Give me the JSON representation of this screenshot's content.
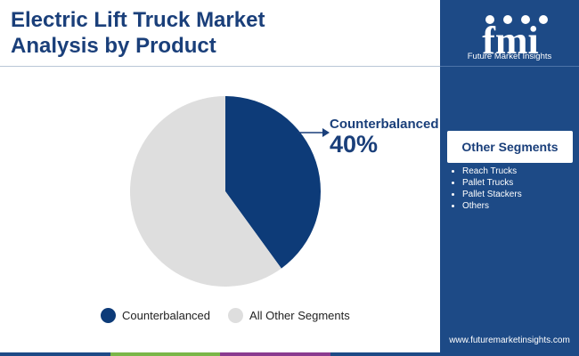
{
  "title": {
    "line1": "Electric Lift Truck Market",
    "line2": "Analysis by Product"
  },
  "chart_data": {
    "type": "pie",
    "slices": [
      {
        "label": "Counterbalanced",
        "value": 40,
        "color": "#0d3b78"
      },
      {
        "label": "All Other Segments",
        "value": 60,
        "color": "#dedede"
      }
    ],
    "callout": {
      "label": "Counterbalanced",
      "value": "40%"
    },
    "legend": [
      "Counterbalanced",
      "All Other Segments"
    ],
    "legend_position": "bottom"
  },
  "sidebar": {
    "logo_icon": "fmi-logo-icon",
    "brand": "Future Market Insights",
    "other_segments_title": "Other Segments",
    "other_segments": [
      "Reach Trucks",
      "Pallet Trucks",
      "Pallet Stackers",
      "Others"
    ],
    "website": "www.futuremarketinsights.com"
  },
  "colors": {
    "title": "#1a3f7a",
    "sidebar_bg": "#1d4a86",
    "bottom_bar": [
      "#1d4a86",
      "#7ab648",
      "#8a3a8f",
      "#1d4a86"
    ]
  }
}
